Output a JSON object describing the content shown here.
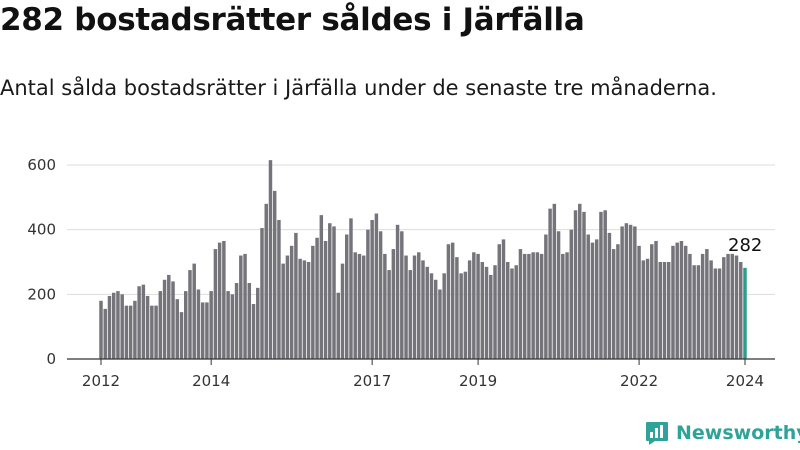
{
  "header": {
    "title": "282 bostadsrätter såldes i Järfälla",
    "subtitle": "Antal sålda bostadsrätter i Järfälla under de senaste tre månaderna."
  },
  "brand": {
    "name": "Newsworthy"
  },
  "colors": {
    "bar": "#75747a",
    "highlight": "#2a9d8f",
    "grid": "#dddddd",
    "brand": "#2fa397"
  },
  "chart_data": {
    "type": "bar",
    "title": "282 bostadsrätter såldes i Järfälla",
    "xlabel": "",
    "ylabel": "",
    "ylim": [
      0,
      650
    ],
    "yticks": [
      0,
      200,
      400,
      600
    ],
    "xticks": [
      {
        "label": "2012",
        "index": 0
      },
      {
        "label": "2014",
        "index": 26
      },
      {
        "label": "2017",
        "index": 64
      },
      {
        "label": "2019",
        "index": 89
      },
      {
        "label": "2022",
        "index": 127
      },
      {
        "label": "2024",
        "index": 152
      }
    ],
    "start_period": "2012-01",
    "highlight_label": "282",
    "values": [
      180,
      155,
      195,
      205,
      210,
      200,
      165,
      165,
      180,
      225,
      230,
      195,
      165,
      165,
      210,
      245,
      260,
      240,
      185,
      145,
      210,
      275,
      295,
      215,
      175,
      175,
      210,
      340,
      360,
      365,
      210,
      200,
      235,
      320,
      325,
      235,
      170,
      220,
      405,
      480,
      615,
      520,
      430,
      295,
      320,
      350,
      390,
      310,
      305,
      300,
      350,
      375,
      445,
      365,
      420,
      410,
      205,
      295,
      385,
      435,
      330,
      325,
      320,
      400,
      430,
      450,
      395,
      325,
      275,
      340,
      415,
      395,
      320,
      275,
      320,
      330,
      305,
      285,
      265,
      245,
      215,
      265,
      355,
      360,
      315,
      265,
      270,
      305,
      330,
      325,
      300,
      285,
      260,
      290,
      355,
      370,
      300,
      280,
      290,
      340,
      325,
      325,
      330,
      330,
      325,
      385,
      465,
      480,
      395,
      325,
      330,
      400,
      460,
      480,
      455,
      385,
      360,
      370,
      455,
      460,
      390,
      340,
      355,
      410,
      420,
      415,
      410,
      350,
      305,
      310,
      355,
      365,
      300,
      300,
      300,
      350,
      360,
      365,
      350,
      325,
      290,
      290,
      325,
      340,
      305,
      280,
      280,
      315,
      325,
      325,
      320,
      300,
      282
    ]
  }
}
